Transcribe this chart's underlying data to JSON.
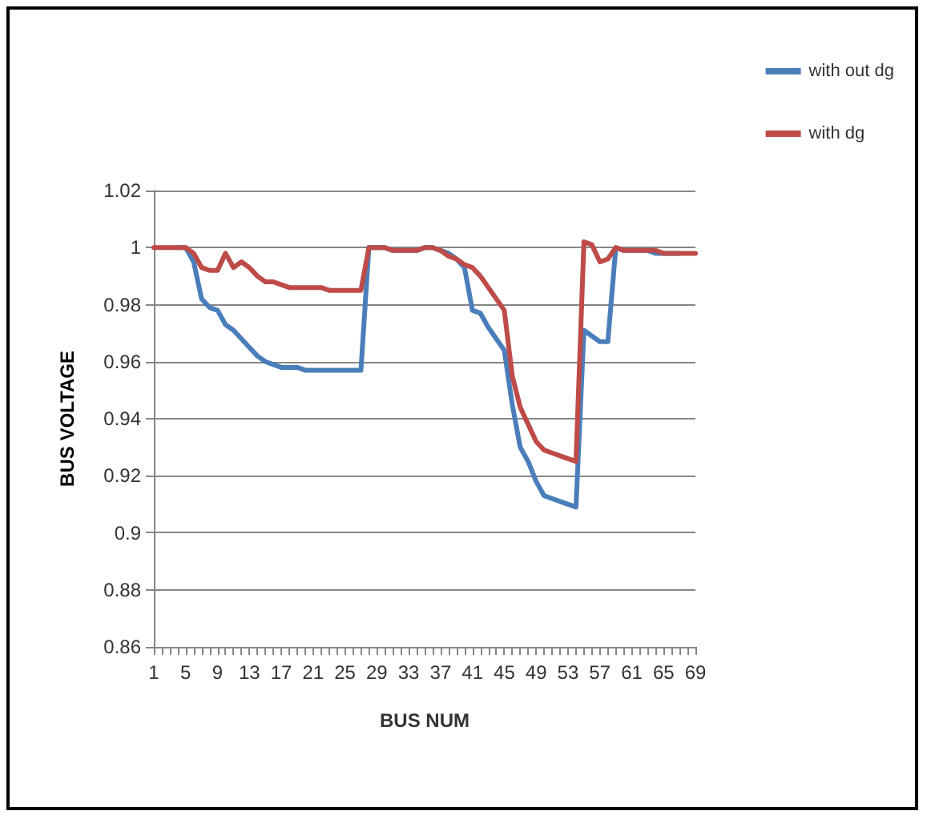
{
  "chart_data": {
    "type": "line",
    "xlabel": "BUS NUM",
    "ylabel": "BUS VOLTAGE",
    "categories": [
      "1",
      null,
      null,
      null,
      "5",
      null,
      null,
      null,
      "9",
      null,
      null,
      null,
      "13",
      null,
      null,
      null,
      "17",
      null,
      null,
      null,
      "21",
      null,
      null,
      null,
      "25",
      null,
      null,
      null,
      "29",
      null,
      null,
      null,
      "33",
      null,
      null,
      null,
      "37",
      null,
      null,
      null,
      "41",
      null,
      null,
      null,
      "45",
      null,
      null,
      null,
      "49",
      null,
      null,
      null,
      "53",
      null,
      null,
      null,
      "57",
      null,
      null,
      null,
      "61",
      null,
      null,
      null,
      "65",
      null,
      null,
      null,
      "69"
    ],
    "series": [
      {
        "name": "with out dg",
        "color": "#4a7ebb",
        "values": [
          null,
          null,
          null,
          1,
          1,
          0.995,
          0.982,
          0.979,
          0.978,
          0.973,
          0.971,
          0.968,
          0.965,
          0.962,
          0.96,
          0.959,
          0.958,
          0.958,
          0.958,
          0.957,
          0.957,
          0.957,
          0.957,
          0.957,
          0.957,
          0.957,
          0.957,
          1,
          1,
          1,
          0.999,
          0.999,
          0.999,
          0.999,
          1,
          1,
          0.999,
          0.998,
          0.996,
          0.993,
          0.978,
          0.977,
          0.972,
          0.968,
          0.964,
          0.945,
          0.93,
          0.925,
          0.918,
          0.913,
          0.912,
          0.911,
          0.91,
          0.909,
          0.971,
          0.969,
          0.967,
          0.967,
          1,
          0.999,
          0.999,
          0.999,
          0.999,
          0.998,
          0.998,
          0.998,
          0.998,
          null,
          null
        ]
      },
      {
        "name": "with dg",
        "color": "#be4b48",
        "values": [
          1,
          1,
          1,
          1,
          1,
          0.998,
          0.993,
          0.992,
          0.992,
          0.998,
          0.993,
          0.995,
          0.993,
          0.99,
          0.988,
          0.988,
          0.987,
          0.986,
          0.986,
          0.986,
          0.986,
          0.986,
          0.985,
          0.985,
          0.985,
          0.985,
          0.985,
          1,
          1,
          1,
          0.999,
          0.999,
          0.999,
          0.999,
          1,
          1,
          0.999,
          0.997,
          0.996,
          0.994,
          0.993,
          0.99,
          0.986,
          0.982,
          0.978,
          0.955,
          0.944,
          0.938,
          0.932,
          0.929,
          0.928,
          0.927,
          0.926,
          0.925,
          1.002,
          1.001,
          0.995,
          0.996,
          1,
          0.999,
          0.999,
          0.999,
          0.999,
          0.999,
          0.998,
          0.998,
          0.998,
          0.998,
          0.998
        ]
      }
    ],
    "ylim": [
      0.86,
      1.02
    ],
    "yticks": [
      0.86,
      0.88,
      0.9,
      0.92,
      0.94,
      0.96,
      0.98,
      1,
      1.02
    ],
    "grid": "y",
    "legend": "top right",
    "marker": "none",
    "line_style": "solid"
  }
}
